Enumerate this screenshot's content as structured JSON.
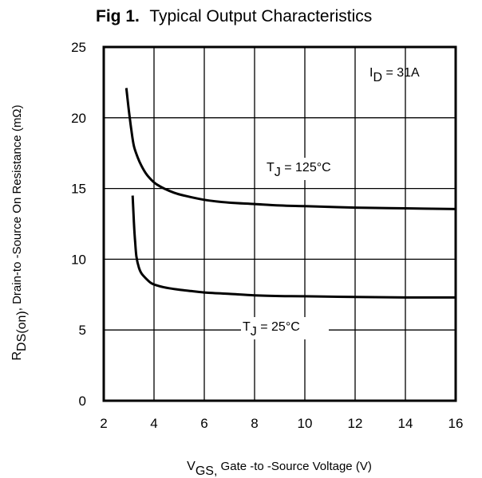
{
  "chart_data": {
    "type": "line",
    "title": {
      "prefix": "Fig 1.",
      "text": "Typical Output Characteristics"
    },
    "xlabel": {
      "main": "V",
      "sub": "GS,",
      "rest": " Gate -to -Source Voltage  (V)"
    },
    "ylabel": {
      "main": "R",
      "sub": "DS(on)",
      "rest": ",  Drain-to -Source On Resistance (mΩ)"
    },
    "xlim": [
      2,
      16
    ],
    "ylim": [
      0,
      25
    ],
    "xticks": [
      "2",
      "4",
      "6",
      "8",
      "10",
      "12",
      "14",
      "16"
    ],
    "yticks": [
      "0",
      "5",
      "10",
      "15",
      "20",
      "25"
    ],
    "grid": true,
    "annotations": {
      "id_label": {
        "main": "I",
        "sub": "D",
        "rest": " = 31A"
      }
    },
    "series": [
      {
        "name": {
          "main": "T",
          "sub": "J",
          "rest": " = 125°C"
        },
        "x": [
          2.9,
          3.0,
          3.1,
          3.2,
          3.35,
          3.5,
          3.7,
          3.9,
          4.1,
          4.4,
          4.8,
          5.2,
          6.0,
          7.0,
          8.0,
          9.0,
          10.0,
          12.0,
          14.0,
          16.0
        ],
        "y": [
          22.1,
          20.5,
          19.1,
          18.0,
          17.2,
          16.6,
          16.0,
          15.6,
          15.3,
          15.0,
          14.7,
          14.5,
          14.2,
          14.0,
          13.9,
          13.8,
          13.75,
          13.65,
          13.6,
          13.55
        ]
      },
      {
        "name": {
          "main": "T",
          "sub": "J",
          "rest": " = 25°C"
        },
        "x": [
          3.15,
          3.2,
          3.25,
          3.3,
          3.4,
          3.5,
          3.7,
          3.9,
          4.2,
          4.6,
          5.0,
          5.5,
          6.0,
          7.0,
          8.0,
          9.0,
          10.0,
          12.0,
          14.0,
          16.0
        ],
        "y": [
          14.5,
          12.6,
          11.2,
          10.2,
          9.4,
          9.0,
          8.6,
          8.3,
          8.1,
          7.95,
          7.85,
          7.75,
          7.65,
          7.55,
          7.45,
          7.4,
          7.38,
          7.33,
          7.3,
          7.3
        ]
      }
    ]
  }
}
